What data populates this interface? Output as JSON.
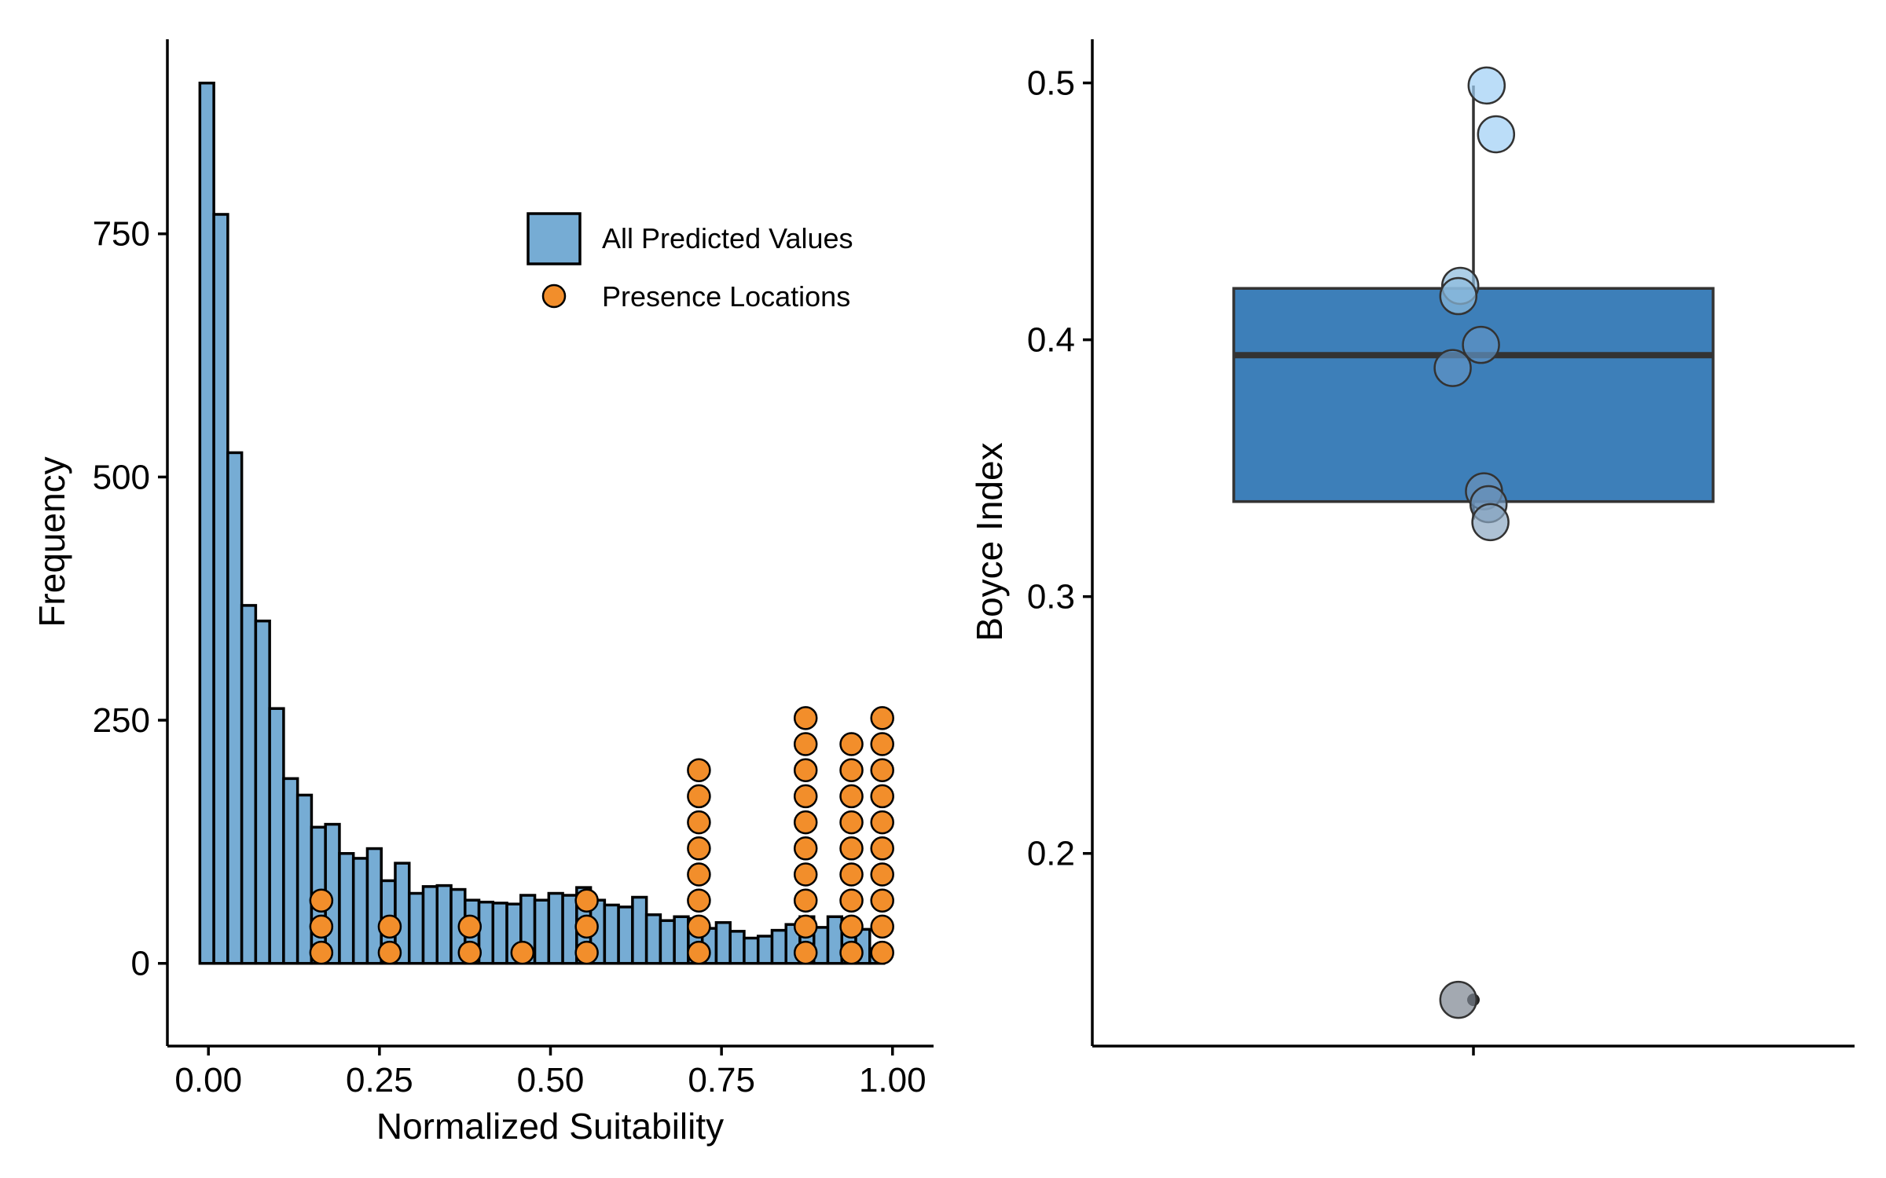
{
  "chart_data": [
    {
      "type": "histogram",
      "xlabel": "Normalized Suitability",
      "ylabel": "Frequency",
      "xlim": [
        -0.06,
        1.06
      ],
      "ylim": [
        -85,
        950
      ],
      "xticks": [
        0.0,
        0.25,
        0.5,
        0.75,
        1.0
      ],
      "xtick_labels": [
        "0.00",
        "0.25",
        "0.50",
        "0.75",
        "1.00"
      ],
      "yticks": [
        0,
        250,
        500,
        750
      ],
      "ytick_labels": [
        "0",
        "250",
        "500",
        "750"
      ],
      "bin_start": -0.0125,
      "bin_width": 0.0204,
      "bin_counts": [
        905,
        770,
        525,
        368,
        352,
        262,
        190,
        173,
        140,
        143,
        113,
        108,
        118,
        85,
        103,
        72,
        79,
        80,
        76,
        65,
        63,
        62,
        61,
        70,
        65,
        72,
        70,
        78,
        65,
        60,
        58,
        68,
        50,
        44,
        48,
        46,
        36,
        42,
        33,
        26,
        28,
        34,
        40,
        48,
        37,
        48,
        46,
        35,
        15
      ],
      "bar_fill": "#76acd4",
      "bar_edge": "#000000",
      "presence_columns": [
        {
          "x": 0.165,
          "count": 3
        },
        {
          "x": 0.265,
          "count": 2
        },
        {
          "x": 0.382,
          "count": 2
        },
        {
          "x": 0.459,
          "count": 1
        },
        {
          "x": 0.553,
          "count": 3
        },
        {
          "x": 0.717,
          "count": 8
        },
        {
          "x": 0.873,
          "count": 10
        },
        {
          "x": 0.94,
          "count": 9
        },
        {
          "x": 0.985,
          "count": 10
        }
      ],
      "presence_base": 11,
      "presence_step": 26.8,
      "presence_color": "#f28e2b",
      "grid": false,
      "legend": {
        "placement": "top-right",
        "entries": [
          {
            "label": "All Predicted Values",
            "type": "bar"
          },
          {
            "label": "Presence Locations",
            "type": "point"
          }
        ]
      }
    },
    {
      "type": "box",
      "xlabel": "",
      "ylabel": "Boyce Index",
      "ylim": [
        0.125,
        0.517
      ],
      "yticks": [
        0.2,
        0.3,
        0.4,
        0.5
      ],
      "ytick_labels": [
        "0.2",
        "0.3",
        "0.4",
        "0.5"
      ],
      "box": {
        "q1": 0.337,
        "median": 0.394,
        "q3": 0.42,
        "whisker_low": 0.33,
        "whisker_high": 0.499
      },
      "outliers": [
        0.143
      ],
      "box_fill": "#3d7fb9",
      "points": [
        {
          "jitter": -0.04,
          "y": 0.143,
          "color": "#7c8590"
        },
        {
          "jitter": 0.035,
          "y": 0.499,
          "color": "#9ecff5"
        },
        {
          "jitter": 0.06,
          "y": 0.48,
          "color": "#9ecff5"
        },
        {
          "jitter": -0.035,
          "y": 0.421,
          "color": "#8bbadd"
        },
        {
          "jitter": -0.04,
          "y": 0.417,
          "color": "#8bbadd"
        },
        {
          "jitter": 0.02,
          "y": 0.398,
          "color": "#5f93c4"
        },
        {
          "jitter": -0.055,
          "y": 0.389,
          "color": "#5f93c4"
        },
        {
          "jitter": 0.028,
          "y": 0.341,
          "color": "#6b91b9"
        },
        {
          "jitter": 0.04,
          "y": 0.336,
          "color": "#6b91b9"
        },
        {
          "jitter": 0.045,
          "y": 0.329,
          "color": "#8aa7c2"
        }
      ],
      "grid": false
    }
  ]
}
